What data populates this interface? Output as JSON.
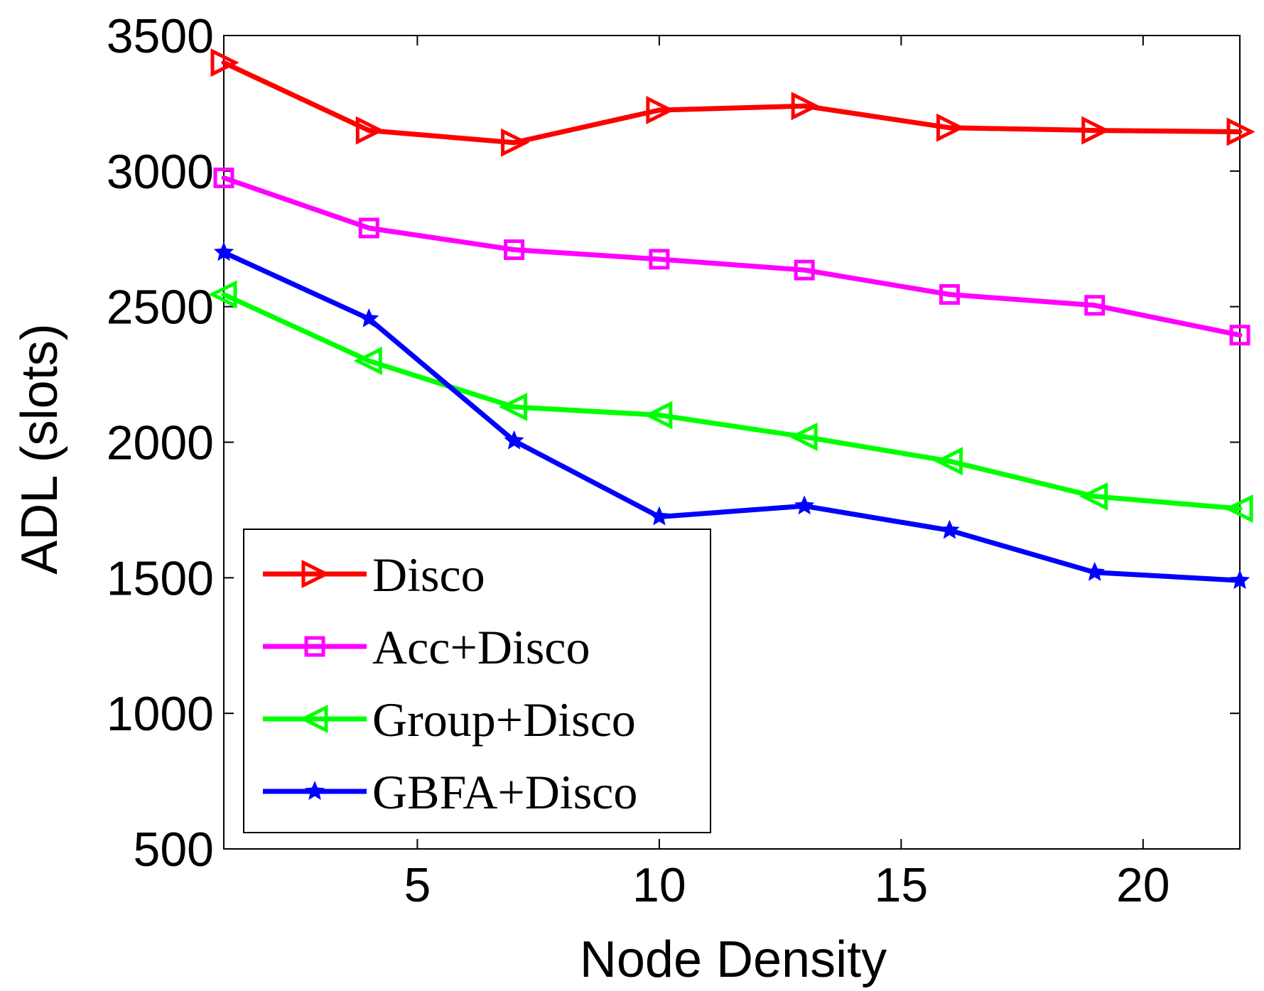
{
  "chart_data": {
    "type": "line",
    "title": "",
    "xlabel": "Node Density",
    "ylabel": "ADL (slots)",
    "xlim": [
      1,
      22
    ],
    "ylim": [
      500,
      3500
    ],
    "xticks": [
      5,
      10,
      15,
      20
    ],
    "yticks": [
      500,
      1000,
      1500,
      2000,
      2500,
      3000,
      3500
    ],
    "grid": false,
    "legend_position": "bottom-left",
    "x": [
      1,
      4,
      7,
      10,
      13,
      16,
      19,
      22
    ],
    "series": [
      {
        "name": "Disco",
        "color": "#ff0000",
        "marker": "triangle-right",
        "values": [
          3400,
          3150,
          3105,
          3225,
          3240,
          3160,
          3150,
          3145
        ]
      },
      {
        "name": "Acc+Disco",
        "color": "#ff00ff",
        "marker": "square",
        "values": [
          2975,
          2790,
          2710,
          2675,
          2635,
          2545,
          2505,
          2395
        ]
      },
      {
        "name": "Group+Disco",
        "color": "#00ff00",
        "marker": "triangle-left",
        "values": [
          2545,
          2300,
          2130,
          2100,
          2020,
          1930,
          1800,
          1755
        ]
      },
      {
        "name": "GBFA+Disco",
        "color": "#0000ff",
        "marker": "star",
        "values": [
          2700,
          2455,
          2005,
          1725,
          1765,
          1675,
          1520,
          1490
        ]
      }
    ]
  }
}
